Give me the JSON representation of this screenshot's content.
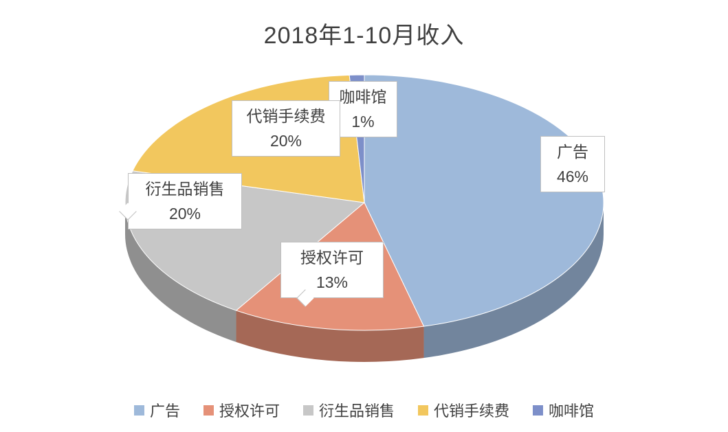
{
  "title": "2018年1-10月收入",
  "chart_data": {
    "type": "pie",
    "title": "2018年1-10月收入",
    "style": "3d",
    "start_angle_deg": 0,
    "direction": "clockwise",
    "categories": [
      "广告",
      "授权许可",
      "衍生品销售",
      "代销手续费",
      "咖啡馆"
    ],
    "values": [
      46,
      13,
      20,
      20,
      1
    ],
    "unit": "%",
    "value_labels": [
      "46%",
      "13%",
      "20%",
      "20%",
      "1%"
    ],
    "colors": [
      "#9EB9DA",
      "#E59178",
      "#C7C7C7",
      "#F2C75E",
      "#7D8FC9"
    ],
    "legend_position": "bottom",
    "data_labels": "category name + percentage in white callout boxes"
  }
}
